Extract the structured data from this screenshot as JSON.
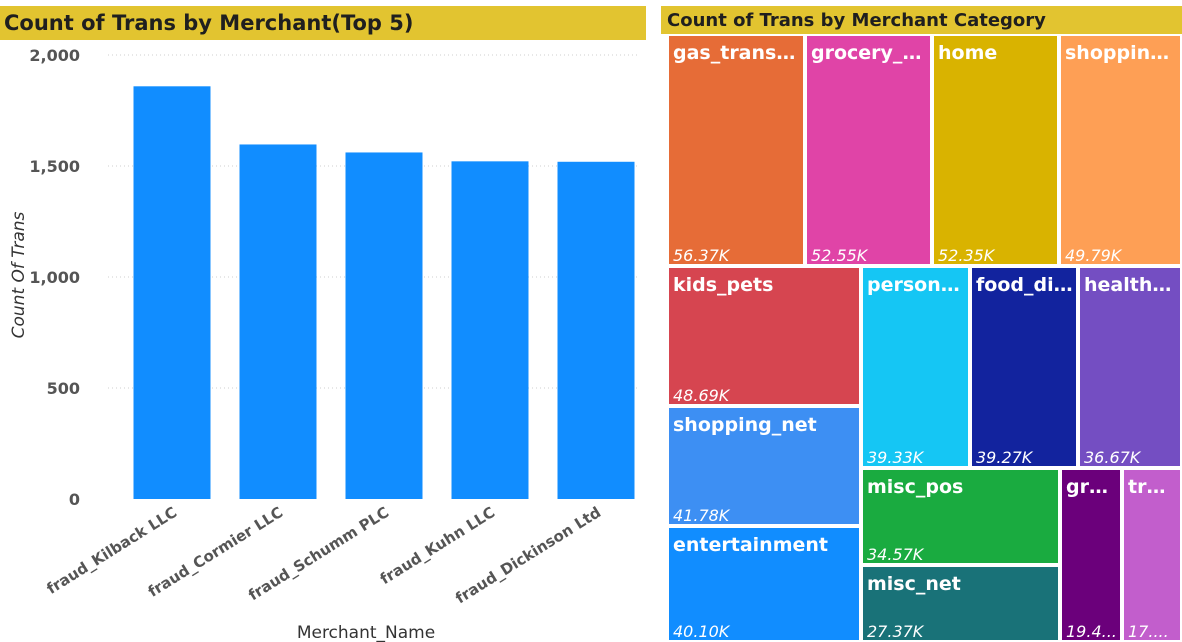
{
  "chart_data": [
    {
      "type": "bar",
      "title": "Count of Trans by Merchant(Top 5)",
      "xlabel": "Merchant_Name",
      "ylabel": "Count Of Trans",
      "categories": [
        "fraud_Kilback LLC",
        "fraud_Cormier LLC",
        "fraud_Schumm PLC",
        "fraud_Kuhn LLC",
        "fraud_Dickinson Ltd"
      ],
      "values": [
        1859,
        1597,
        1561,
        1521,
        1519
      ],
      "ylim": [
        0,
        2000
      ],
      "yticks": [
        0,
        500,
        1000,
        1500,
        2000
      ],
      "ytick_labels": [
        "0",
        "500",
        "1,000",
        "1,500",
        "2,000"
      ],
      "bar_color": "#118dff",
      "grid": true
    },
    {
      "type": "treemap",
      "title": "Count of Trans by Merchant Category",
      "items": [
        {
          "name": "gas_transp...",
          "label": "56.37K",
          "value": 56370,
          "color": "#e66c37"
        },
        {
          "name": "grocery_p...",
          "label": "52.55K",
          "value": 52550,
          "color": "#e044a7"
        },
        {
          "name": "home",
          "label": "52.35K",
          "value": 52350,
          "color": "#d9b300"
        },
        {
          "name": "shopping...",
          "label": "49.79K",
          "value": 49790,
          "color": "#fe9f55"
        },
        {
          "name": "kids_pets",
          "label": "48.69K",
          "value": 48690,
          "color": "#d64550"
        },
        {
          "name": "persona...",
          "label": "39.33K",
          "value": 39330,
          "color": "#15c6f4"
        },
        {
          "name": "food_di...",
          "label": "39.27K",
          "value": 39270,
          "color": "#12239e"
        },
        {
          "name": "health_...",
          "label": "36.67K",
          "value": 36670,
          "color": "#744ec2"
        },
        {
          "name": "shopping_net",
          "label": "41.78K",
          "value": 41780,
          "color": "#3d8ff3"
        },
        {
          "name": "entertainment",
          "label": "40.10K",
          "value": 40100,
          "color": "#118dff"
        },
        {
          "name": "misc_pos",
          "label": "34.57K",
          "value": 34570,
          "color": "#1aab40"
        },
        {
          "name": "misc_net",
          "label": "27.37K",
          "value": 27370,
          "color": "#197278"
        },
        {
          "name": "gro...",
          "label": "19.4...",
          "value": 19400,
          "color": "#6b007b"
        },
        {
          "name": "tra...",
          "label": "17....",
          "value": 17000,
          "color": "#c25ecc"
        }
      ]
    }
  ]
}
